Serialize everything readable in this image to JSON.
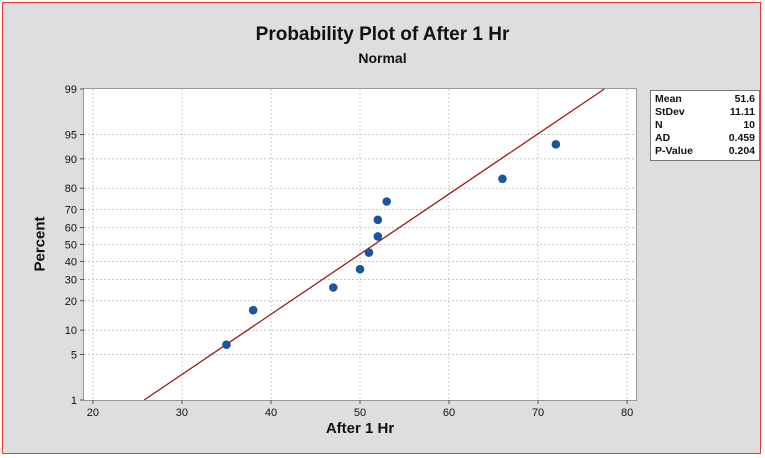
{
  "chart_data": {
    "type": "scatter",
    "title": "Probability Plot of After 1 Hr",
    "subtitle": "Normal",
    "xlabel": "After 1 Hr",
    "ylabel": "Percent",
    "xlim": [
      19,
      81
    ],
    "y_scale": "normal-probability",
    "ylim": [
      1,
      99
    ],
    "x_ticks": [
      20,
      30,
      40,
      50,
      60,
      70,
      80
    ],
    "y_ticks": [
      1,
      5,
      10,
      20,
      30,
      40,
      50,
      60,
      70,
      80,
      90,
      95,
      99
    ],
    "grid": true,
    "points": [
      {
        "x": 35,
        "y": 6.7
      },
      {
        "x": 38,
        "y": 16.3
      },
      {
        "x": 47,
        "y": 26.0
      },
      {
        "x": 50,
        "y": 35.6
      },
      {
        "x": 51,
        "y": 45.2
      },
      {
        "x": 52,
        "y": 54.8
      },
      {
        "x": 52,
        "y": 64.4
      },
      {
        "x": 53,
        "y": 74.0
      },
      {
        "x": 66,
        "y": 83.7
      },
      {
        "x": 72,
        "y": 93.3
      }
    ],
    "fit_line": {
      "mean": 51.6,
      "stdev": 11.11
    },
    "colors": {
      "points": "#1a56a0",
      "fit_line": "#9b1b1b",
      "grid": "#c8c8c8"
    }
  },
  "stats_box": [
    {
      "label": "Mean",
      "value": "51.6"
    },
    {
      "label": "StDev",
      "value": "11.11"
    },
    {
      "label": "N",
      "value": "10"
    },
    {
      "label": "AD",
      "value": "0.459"
    },
    {
      "label": "P-Value",
      "value": "0.204"
    }
  ]
}
